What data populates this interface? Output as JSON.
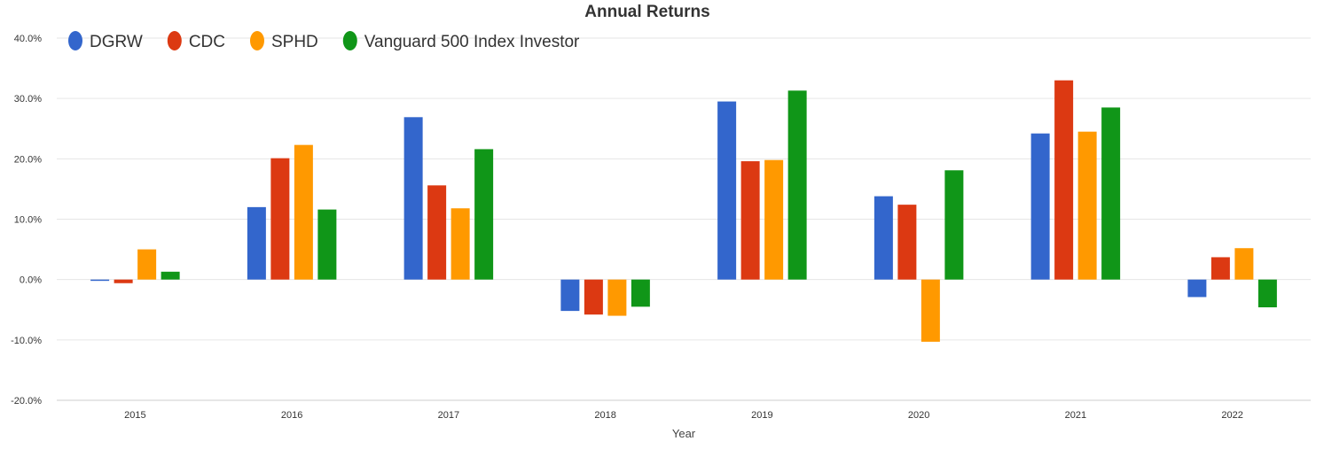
{
  "chart_data": {
    "type": "bar",
    "title": "Annual Returns",
    "xlabel": "Year",
    "ylabel": "",
    "categories": [
      "2015",
      "2016",
      "2017",
      "2018",
      "2019",
      "2020",
      "2021",
      "2022"
    ],
    "ylim": [
      -20,
      40
    ],
    "yticks": [
      -20,
      -10,
      0,
      10,
      20,
      30,
      40
    ],
    "ytick_labels": [
      "-20.0%",
      "-10.0%",
      "0.0%",
      "10.0%",
      "20.0%",
      "30.0%",
      "40.0%"
    ],
    "grid": true,
    "legend_position": "top-left",
    "series": [
      {
        "name": "DGRW",
        "color": "#3366cc",
        "values": [
          -0.2,
          12.0,
          26.9,
          -5.2,
          29.5,
          13.8,
          24.2,
          -2.9
        ]
      },
      {
        "name": "CDC",
        "color": "#dc3912",
        "values": [
          -0.6,
          20.1,
          15.6,
          -5.8,
          19.6,
          12.4,
          33.0,
          3.7
        ]
      },
      {
        "name": "SPHD",
        "color": "#ff9900",
        "values": [
          5.0,
          22.3,
          11.8,
          -6.0,
          19.8,
          -10.3,
          24.5,
          5.2
        ]
      },
      {
        "name": "Vanguard 500 Index Investor",
        "color": "#109618",
        "values": [
          1.3,
          11.6,
          21.6,
          -4.5,
          31.3,
          18.1,
          28.5,
          -4.6
        ]
      }
    ]
  }
}
